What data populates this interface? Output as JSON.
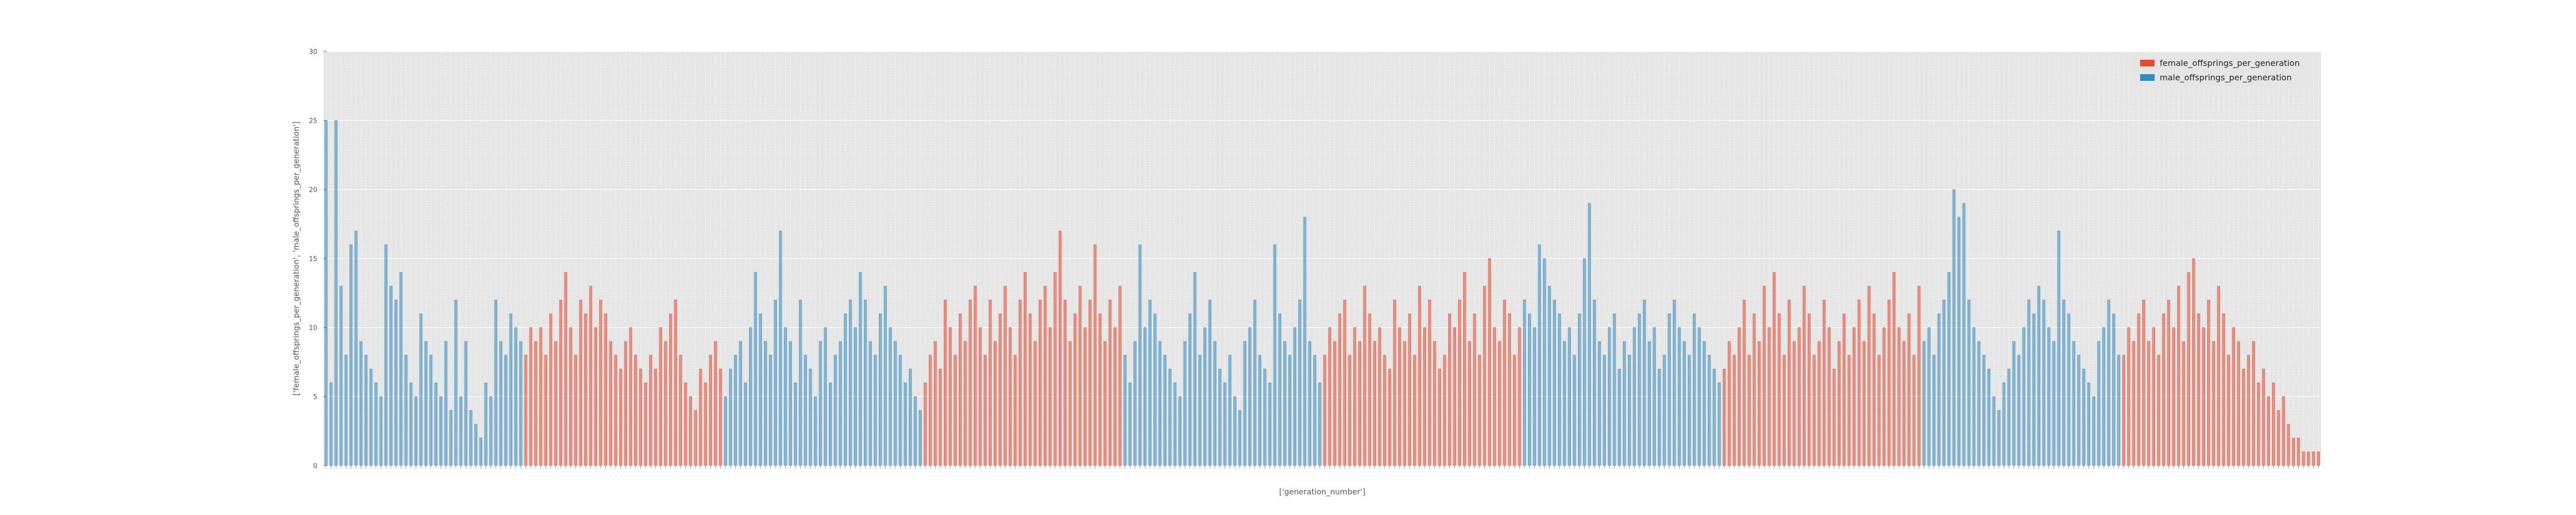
{
  "chart_data": {
    "type": "bar",
    "xlabel": "['generation_number']",
    "ylabel": "['female_offsprings_per_generation', 'male_offsprings_per_generation']",
    "ylim": [
      0,
      30
    ],
    "yticks": [
      0,
      5,
      10,
      15,
      20,
      25,
      30
    ],
    "grid": true,
    "legend_position": "top-right",
    "x_tick_labels_note": "one tick label per generation; labels are illegible at this resolution",
    "generation_count": 400,
    "series": [
      {
        "name": "female_offsprings_per_generation",
        "color": "#E24A33",
        "segments": [
          {
            "start_index": 40,
            "values": [
              8,
              10,
              9,
              10,
              8,
              11,
              9,
              12,
              14,
              10,
              8,
              12,
              11,
              13,
              10,
              12,
              11,
              9,
              8,
              7,
              9,
              10,
              8,
              7,
              6,
              8,
              7,
              10,
              9,
              11,
              12,
              8,
              6,
              5,
              4,
              7,
              6,
              8,
              9,
              7
            ]
          },
          {
            "start_index": 120,
            "values": [
              6,
              8,
              9,
              7,
              12,
              10,
              8,
              11,
              9,
              12,
              13,
              10,
              8,
              12,
              9,
              11,
              13,
              10,
              8,
              12,
              14,
              11,
              9,
              12,
              13,
              10,
              14,
              17,
              12,
              9,
              11,
              13,
              10,
              12,
              16,
              11,
              9,
              12,
              10,
              13
            ]
          },
          {
            "start_index": 200,
            "values": [
              8,
              10,
              9,
              11,
              12,
              8,
              10,
              9,
              13,
              11,
              9,
              10,
              8,
              7,
              12,
              10,
              9,
              11,
              8,
              13,
              10,
              12,
              9,
              7,
              8,
              11,
              10,
              12,
              14,
              9,
              11,
              8,
              13,
              15,
              10,
              9,
              12,
              11,
              8,
              10
            ]
          },
          {
            "start_index": 280,
            "values": [
              7,
              9,
              8,
              10,
              12,
              8,
              11,
              9,
              13,
              10,
              14,
              11,
              8,
              12,
              9,
              10,
              13,
              11,
              8,
              9,
              12,
              10,
              7,
              9,
              11,
              8,
              10,
              12,
              9,
              13,
              11,
              8,
              10,
              12,
              14,
              10,
              9,
              11,
              8,
              13
            ]
          },
          {
            "start_index": 360,
            "values": [
              8,
              10,
              9,
              11,
              12,
              9,
              10,
              8,
              11,
              12,
              10,
              13,
              9,
              14,
              15,
              11,
              10,
              12,
              9,
              13,
              11,
              8,
              10,
              9,
              7,
              8,
              9,
              6,
              7,
              5,
              6,
              4,
              5,
              3,
              2,
              2,
              1,
              1,
              1,
              1
            ]
          }
        ]
      },
      {
        "name": "male_offsprings_per_generation",
        "color": "#348ABD",
        "segments": [
          {
            "start_index": 0,
            "values": [
              25,
              6,
              25,
              13,
              8,
              16,
              17,
              9,
              8,
              7,
              6,
              5,
              16,
              13,
              12,
              14,
              8,
              6,
              5,
              11,
              9,
              8,
              6,
              5,
              9,
              4,
              12,
              5,
              9,
              4,
              3,
              2,
              6,
              5,
              12,
              9,
              8,
              11,
              10,
              9
            ]
          },
          {
            "start_index": 80,
            "values": [
              5,
              7,
              8,
              9,
              6,
              10,
              14,
              11,
              9,
              8,
              12,
              17,
              10,
              9,
              6,
              12,
              8,
              7,
              5,
              9,
              10,
              6,
              8,
              9,
              11,
              12,
              10,
              14,
              12,
              9,
              8,
              11,
              13,
              10,
              9,
              8,
              6,
              7,
              5,
              4
            ]
          },
          {
            "start_index": 160,
            "values": [
              8,
              6,
              9,
              16,
              10,
              12,
              11,
              9,
              8,
              7,
              6,
              5,
              9,
              11,
              14,
              8,
              10,
              12,
              9,
              7,
              6,
              8,
              5,
              4,
              9,
              10,
              12,
              8,
              7,
              6,
              16,
              11,
              9,
              8,
              10,
              12,
              18,
              9,
              8,
              6
            ]
          },
          {
            "start_index": 240,
            "values": [
              12,
              11,
              10,
              16,
              15,
              13,
              12,
              11,
              9,
              10,
              8,
              11,
              15,
              19,
              12,
              9,
              8,
              10,
              11,
              7,
              9,
              8,
              10,
              11,
              12,
              9,
              10,
              7,
              8,
              11,
              12,
              10,
              9,
              8,
              11,
              10,
              9,
              8,
              7,
              6
            ]
          },
          {
            "start_index": 320,
            "values": [
              9,
              10,
              8,
              11,
              12,
              14,
              20,
              18,
              19,
              12,
              10,
              9,
              8,
              7,
              5,
              4,
              6,
              7,
              9,
              8,
              10,
              12,
              11,
              13,
              12,
              10,
              9,
              17,
              12,
              11,
              9,
              8,
              7,
              6,
              5,
              9,
              10,
              12,
              11,
              8
            ]
          }
        ]
      }
    ]
  }
}
